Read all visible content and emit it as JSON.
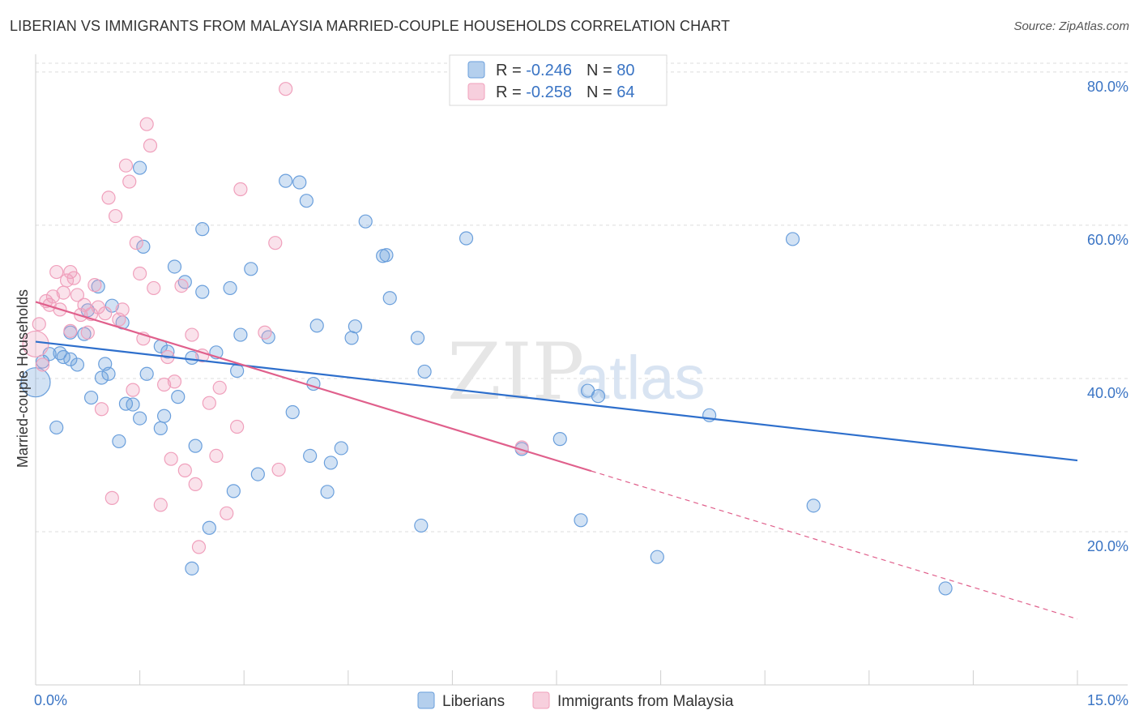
{
  "header": {
    "title": "LIBERIAN VS IMMIGRANTS FROM MALAYSIA MARRIED-COUPLE HOUSEHOLDS CORRELATION CHART",
    "source": "Source: ZipAtlas.com"
  },
  "watermark": {
    "zip": "ZIP",
    "atlas": "atlas"
  },
  "chart_data": {
    "type": "scatter",
    "title": "LIBERIAN VS IMMIGRANTS FROM MALAYSIA MARRIED-COUPLE HOUSEHOLDS CORRELATION CHART",
    "xlabel": "",
    "ylabel": "Married-couple Households",
    "xlim": [
      0,
      15
    ],
    "ylim": [
      0,
      82
    ],
    "x_ticks": [
      0,
      15
    ],
    "x_tick_labels": [
      "0.0%",
      "15.0%"
    ],
    "y_ticks": [
      20,
      40,
      60,
      80
    ],
    "y_tick_labels": [
      "20.0%",
      "40.0%",
      "60.0%",
      "80.0%"
    ],
    "grid": true,
    "legend_position": "bottom-center",
    "stats_box": [
      {
        "r_label": "R = ",
        "r_value": "-0.246",
        "n_label": "N = ",
        "n_value": "80"
      },
      {
        "r_label": "R = ",
        "r_value": "-0.258",
        "n_label": "N = ",
        "n_value": "64"
      }
    ],
    "series": [
      {
        "name": "Liberians",
        "color": "#6a9fdc",
        "line_color": "#2e6fcc",
        "trend": {
          "x0": 0,
          "y0": 44.8,
          "x1": 15,
          "y1": 29.3,
          "solid_until": 15
        },
        "points": [
          [
            0.0,
            39.5
          ],
          [
            0.1,
            42.2
          ],
          [
            0.2,
            43.2
          ],
          [
            0.3,
            33.6
          ],
          [
            0.35,
            43.3
          ],
          [
            0.4,
            42.8
          ],
          [
            0.5,
            42.5
          ],
          [
            0.5,
            46.0
          ],
          [
            0.6,
            41.8
          ],
          [
            0.7,
            45.8
          ],
          [
            0.75,
            48.9
          ],
          [
            0.8,
            37.5
          ],
          [
            0.9,
            52.0
          ],
          [
            0.95,
            40.1
          ],
          [
            1.0,
            41.9
          ],
          [
            1.05,
            40.6
          ],
          [
            1.1,
            49.5
          ],
          [
            1.2,
            31.8
          ],
          [
            1.25,
            47.3
          ],
          [
            1.3,
            36.7
          ],
          [
            1.4,
            36.6
          ],
          [
            1.5,
            67.5
          ],
          [
            1.5,
            34.8
          ],
          [
            1.55,
            57.2
          ],
          [
            1.6,
            40.6
          ],
          [
            1.8,
            44.2
          ],
          [
            1.8,
            33.5
          ],
          [
            1.85,
            35.1
          ],
          [
            1.9,
            43.5
          ],
          [
            2.0,
            54.6
          ],
          [
            2.05,
            37.6
          ],
          [
            2.15,
            52.6
          ],
          [
            2.25,
            15.2
          ],
          [
            2.25,
            42.7
          ],
          [
            2.3,
            31.2
          ],
          [
            2.4,
            51.3
          ],
          [
            2.4,
            59.5
          ],
          [
            2.5,
            20.5
          ],
          [
            2.6,
            43.4
          ],
          [
            2.8,
            51.8
          ],
          [
            2.85,
            25.3
          ],
          [
            2.9,
            41.0
          ],
          [
            2.95,
            45.7
          ],
          [
            3.1,
            54.3
          ],
          [
            3.2,
            27.5
          ],
          [
            3.35,
            45.4
          ],
          [
            3.6,
            65.8
          ],
          [
            3.7,
            35.6
          ],
          [
            3.8,
            65.6
          ],
          [
            3.9,
            63.2
          ],
          [
            3.95,
            29.9
          ],
          [
            4.0,
            39.3
          ],
          [
            4.05,
            46.9
          ],
          [
            4.2,
            25.2
          ],
          [
            4.25,
            29.0
          ],
          [
            4.4,
            30.9
          ],
          [
            4.55,
            45.3
          ],
          [
            4.6,
            46.8
          ],
          [
            4.75,
            60.5
          ],
          [
            5.0,
            56.0
          ],
          [
            5.05,
            56.1
          ],
          [
            5.1,
            50.5
          ],
          [
            5.5,
            45.3
          ],
          [
            5.55,
            20.8
          ],
          [
            5.6,
            40.9
          ],
          [
            6.2,
            58.3
          ],
          [
            7.0,
            30.8
          ],
          [
            7.55,
            32.1
          ],
          [
            7.85,
            21.5
          ],
          [
            7.95,
            38.4
          ],
          [
            8.1,
            37.7
          ],
          [
            8.95,
            16.7
          ],
          [
            9.7,
            35.2
          ],
          [
            10.9,
            58.2
          ],
          [
            11.2,
            23.4
          ],
          [
            13.1,
            12.6
          ]
        ]
      },
      {
        "name": "Immigrants from Malaysia",
        "color": "#f0a0bc",
        "line_color": "#e0608c",
        "trend": {
          "x0": 0,
          "y0": 50.0,
          "x1": 15,
          "y1": 8.6,
          "solid_until": 8.0
        },
        "points": [
          [
            0.0,
            44.5
          ],
          [
            0.05,
            47.1
          ],
          [
            0.1,
            41.8
          ],
          [
            0.15,
            50.1
          ],
          [
            0.2,
            49.6
          ],
          [
            0.25,
            50.7
          ],
          [
            0.3,
            53.9
          ],
          [
            0.35,
            49.0
          ],
          [
            0.4,
            51.2
          ],
          [
            0.45,
            52.8
          ],
          [
            0.5,
            46.2
          ],
          [
            0.5,
            53.9
          ],
          [
            0.55,
            53.1
          ],
          [
            0.6,
            50.9
          ],
          [
            0.65,
            48.3
          ],
          [
            0.7,
            49.6
          ],
          [
            0.75,
            46.0
          ],
          [
            0.8,
            48.4
          ],
          [
            0.85,
            52.2
          ],
          [
            0.9,
            49.3
          ],
          [
            0.95,
            36.0
          ],
          [
            1.0,
            48.5
          ],
          [
            1.05,
            63.6
          ],
          [
            1.1,
            24.4
          ],
          [
            1.15,
            61.2
          ],
          [
            1.2,
            47.7
          ],
          [
            1.25,
            49.0
          ],
          [
            1.3,
            67.8
          ],
          [
            1.35,
            65.7
          ],
          [
            1.4,
            38.5
          ],
          [
            1.45,
            57.7
          ],
          [
            1.5,
            53.7
          ],
          [
            1.55,
            45.2
          ],
          [
            1.6,
            73.2
          ],
          [
            1.65,
            70.4
          ],
          [
            1.7,
            51.8
          ],
          [
            1.8,
            23.5
          ],
          [
            1.85,
            39.2
          ],
          [
            1.9,
            42.8
          ],
          [
            1.95,
            29.5
          ],
          [
            2.0,
            39.6
          ],
          [
            2.1,
            52.1
          ],
          [
            2.15,
            28.0
          ],
          [
            2.25,
            45.7
          ],
          [
            2.3,
            26.2
          ],
          [
            2.35,
            18.0
          ],
          [
            2.4,
            43.0
          ],
          [
            2.5,
            36.8
          ],
          [
            2.6,
            29.9
          ],
          [
            2.65,
            38.8
          ],
          [
            2.75,
            22.4
          ],
          [
            2.9,
            33.7
          ],
          [
            2.95,
            64.7
          ],
          [
            3.3,
            46.0
          ],
          [
            3.45,
            57.7
          ],
          [
            3.5,
            28.1
          ],
          [
            3.6,
            77.8
          ],
          [
            7.0,
            31.0
          ]
        ]
      }
    ]
  }
}
